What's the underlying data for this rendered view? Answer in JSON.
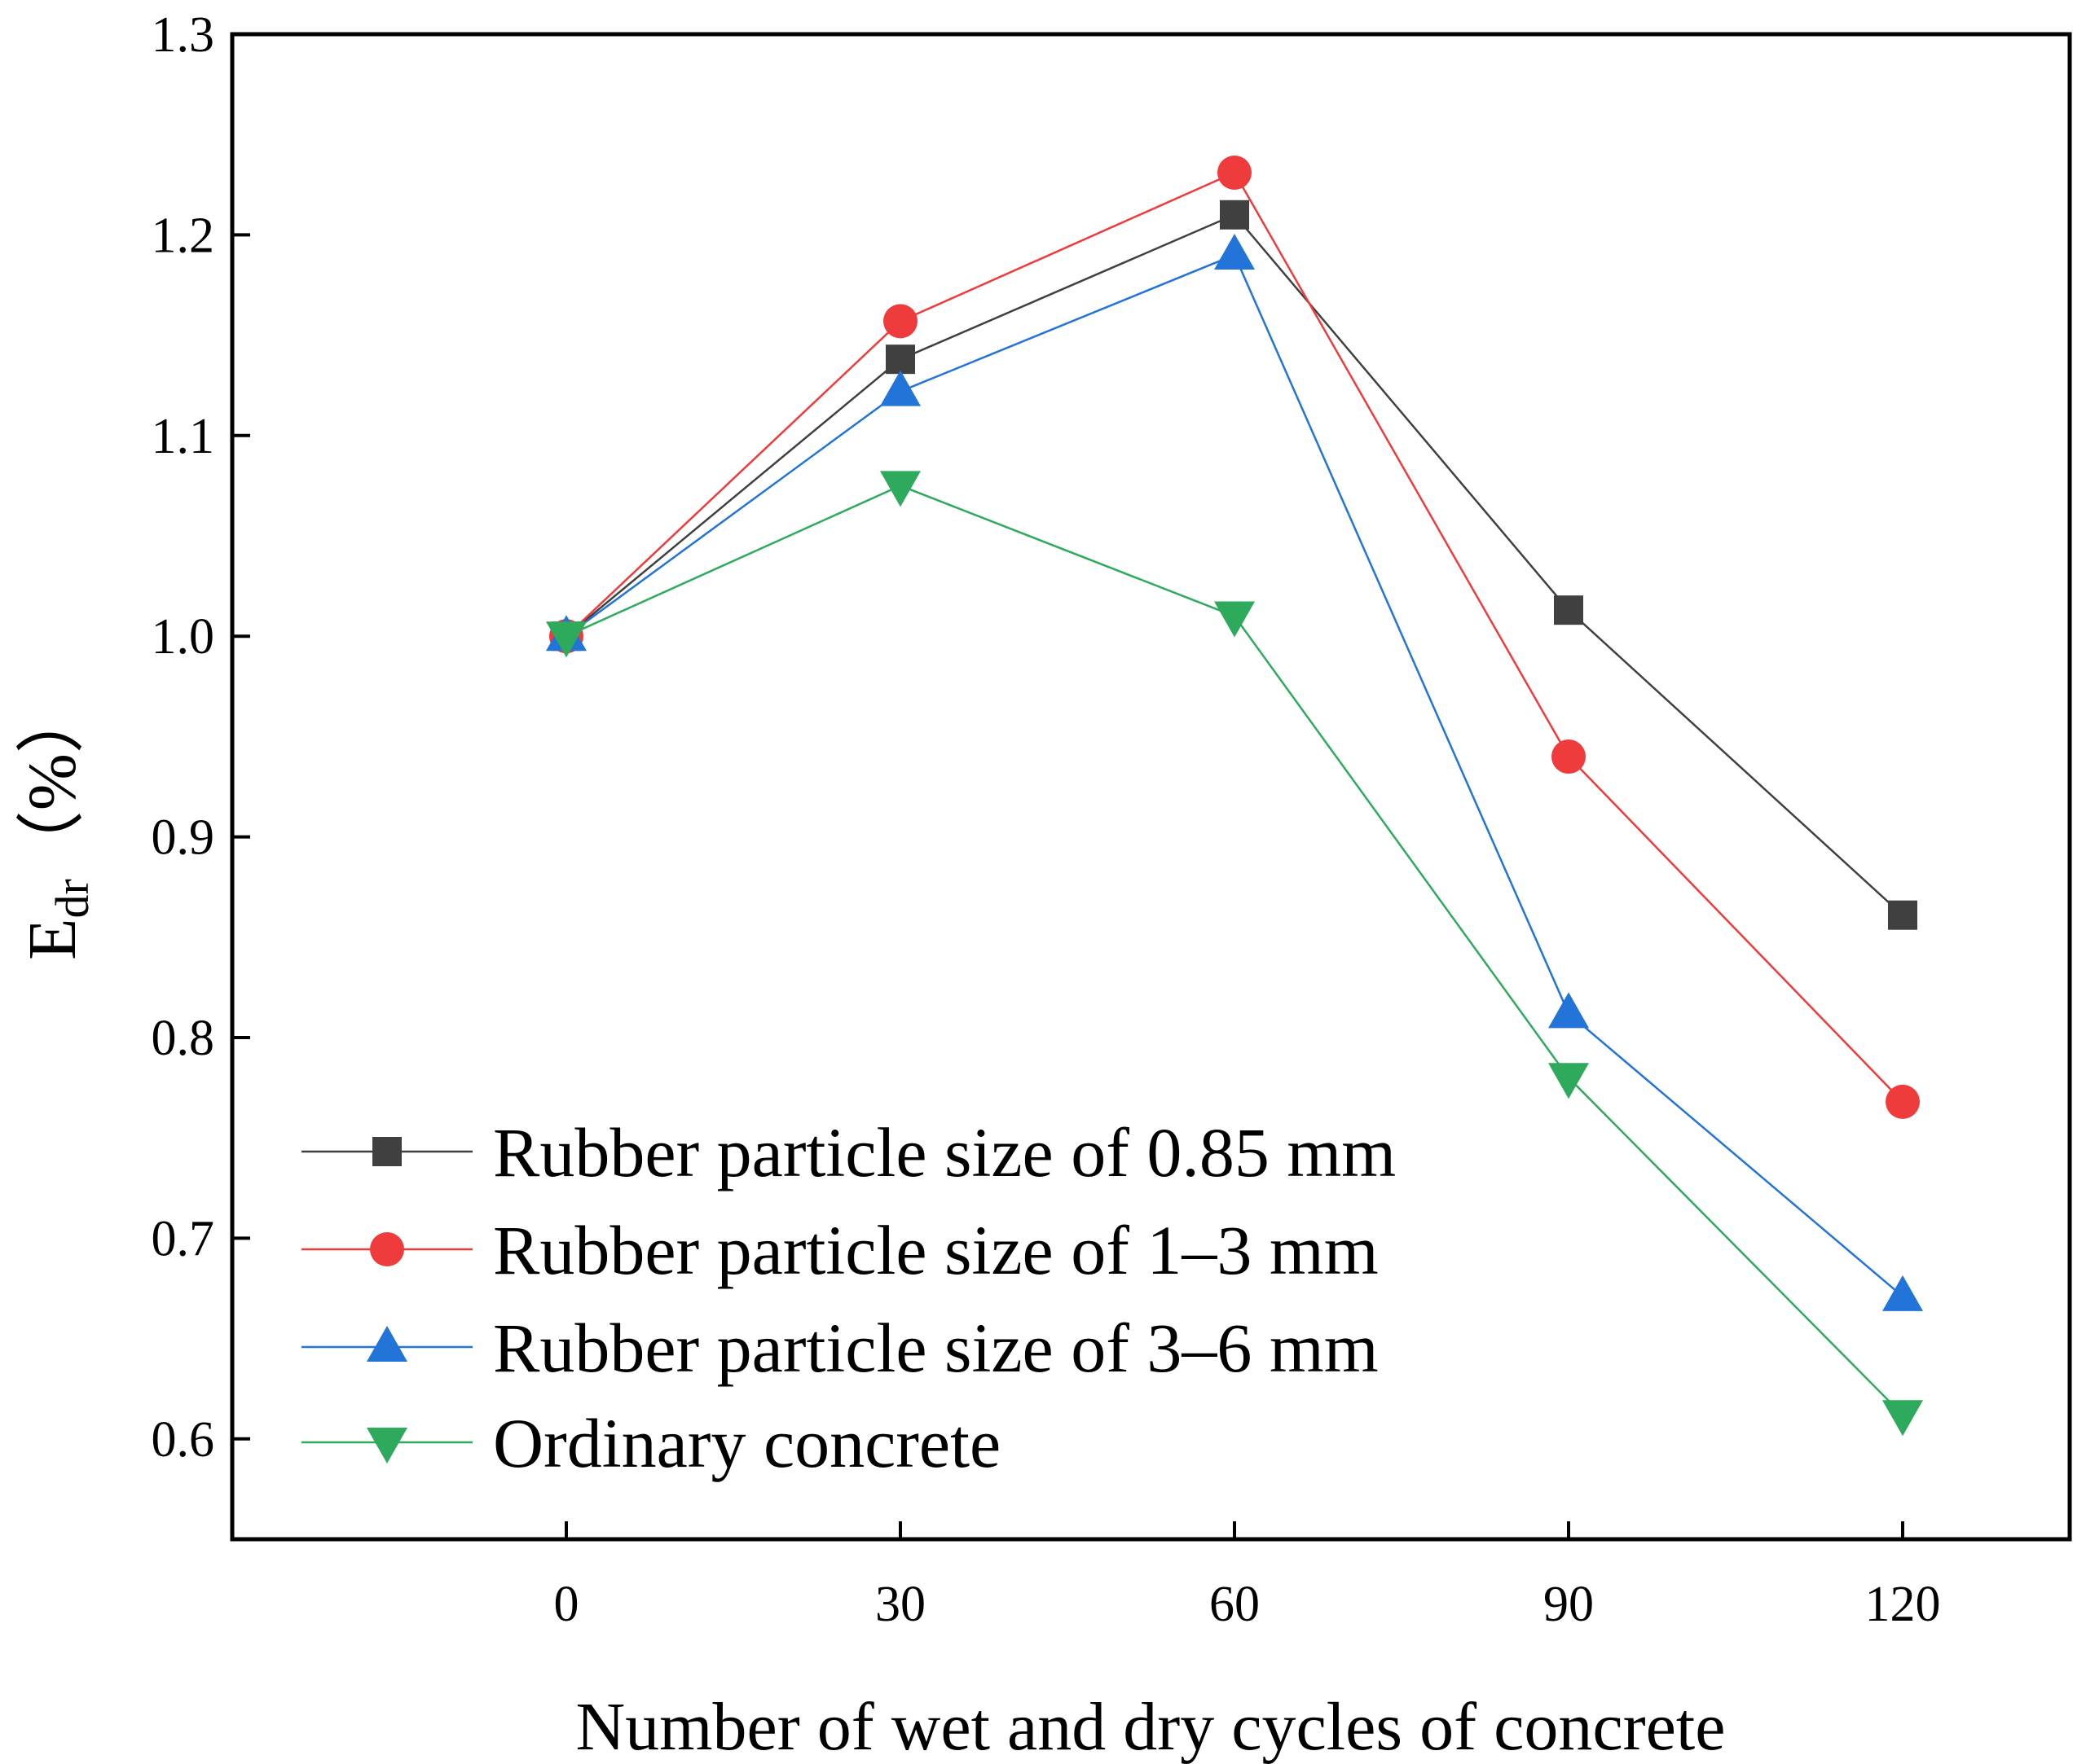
{
  "chart_data": {
    "type": "line",
    "x": [
      0,
      30,
      60,
      90,
      120
    ],
    "xlim": [
      -30,
      135
    ],
    "ylim": [
      0.55,
      1.3
    ],
    "xticks": [
      "0",
      "30",
      "60",
      "90",
      "120"
    ],
    "yticks": [
      "0.6",
      "0.7",
      "0.8",
      "0.9",
      "1.0",
      "1.1",
      "1.2",
      "1.3"
    ],
    "xlabel": "Number of wet and dry cycles of concrete",
    "ylabel_main": "E",
    "ylabel_sub": "dr",
    "ylabel_unit": "（%）",
    "grid": false,
    "legend_position": "bottom-left",
    "series": [
      {
        "name": "Rubber particle size of 0.85 mm",
        "marker": "square",
        "color": "#404040",
        "line_color": "#404040",
        "values": [
          1.0,
          1.138,
          1.21,
          1.013,
          0.861
        ]
      },
      {
        "name": "Rubber particle size of 1–3  mm",
        "marker": "circle",
        "color": "#ef3b3b",
        "line_color": "#ef3b3b",
        "values": [
          1.0,
          1.157,
          1.231,
          0.94,
          0.768
        ]
      },
      {
        "name": "Rubber particle size of 3–6  mm",
        "marker": "triangle-up",
        "color": "#2274d8",
        "line_color": "#2274d8",
        "values": [
          1.0,
          1.122,
          1.19,
          0.812,
          0.671
        ]
      },
      {
        "name": "Ordinary concrete",
        "marker": "triangle-down",
        "color": "#2eaa5d",
        "line_color": "#2eaa5d",
        "values": [
          1.0,
          1.075,
          1.01,
          0.78,
          0.612
        ]
      }
    ]
  }
}
